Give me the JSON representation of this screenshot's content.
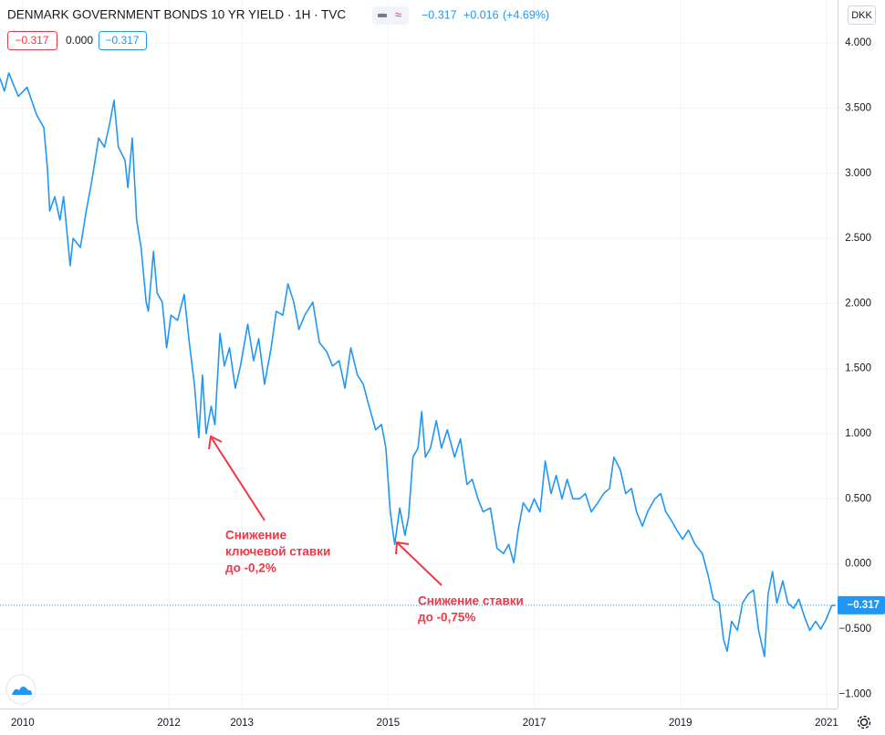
{
  "chart_data": {
    "type": "line",
    "title": "DENMARK GOVERNMENT BONDS 10 YR YIELD · 1H · TVC",
    "quote": {
      "last": "−0.317",
      "change": "+0.016",
      "change_pct": "(+4.69%)"
    },
    "ohlc_boxes": [
      "−0.317",
      "0.000",
      "−0.317"
    ],
    "currency": "DKK",
    "last_value": {
      "value": -0.317,
      "label": "−0.317"
    },
    "annotations": [
      {
        "lines": [
          "Снижение",
          "ключевой ставки",
          "до -0,2%"
        ]
      },
      {
        "lines": [
          "Снижение ставки",
          "до -0,75%"
        ]
      }
    ],
    "grid": true,
    "xlim": [
      2009.69,
      2021.15
    ],
    "xticks": [
      2010,
      2012,
      2013,
      2015,
      2017,
      2019,
      2021
    ],
    "ylim": [
      -1.11,
      4.33
    ],
    "yticks": [
      {
        "value": -1,
        "label": "−1.000"
      },
      {
        "value": -0.5,
        "label": "−0.500"
      },
      {
        "value": 0,
        "label": "0.000"
      },
      {
        "value": 0.5,
        "label": "0.500"
      },
      {
        "value": 1,
        "label": "1.000"
      },
      {
        "value": 1.5,
        "label": "1.500"
      },
      {
        "value": 2,
        "label": "2.000"
      },
      {
        "value": 2.5,
        "label": "2.500"
      },
      {
        "value": 3,
        "label": "3.000"
      },
      {
        "value": 3.5,
        "label": "3.500"
      },
      {
        "value": 4,
        "label": "4.000"
      }
    ],
    "x": [
      2009.69,
      2009.75,
      2009.81,
      2009.94,
      2010.06,
      2010.19,
      2010.29,
      2010.34,
      2010.37,
      2010.44,
      2010.51,
      2010.56,
      2010.65,
      2010.69,
      2010.79,
      2010.87,
      2010.94,
      2011.04,
      2011.12,
      2011.19,
      2011.25,
      2011.31,
      2011.4,
      2011.44,
      2011.5,
      2011.56,
      2011.62,
      2011.69,
      2011.72,
      2011.79,
      2011.84,
      2011.91,
      2011.97,
      2012.03,
      2012.12,
      2012.21,
      2012.28,
      2012.35,
      2012.41,
      2012.46,
      2012.51,
      2012.58,
      2012.63,
      2012.7,
      2012.76,
      2012.83,
      2012.91,
      2012.98,
      2013.08,
      2013.16,
      2013.23,
      2013.31,
      2013.4,
      2013.47,
      2013.56,
      2013.63,
      2013.71,
      2013.78,
      2013.86,
      2013.97,
      2014.06,
      2014.16,
      2014.24,
      2014.33,
      2014.41,
      2014.49,
      2014.58,
      2014.66,
      2014.74,
      2014.83,
      2014.91,
      2014.97,
      2015.03,
      2015.09,
      2015.16,
      2015.23,
      2015.28,
      2015.34,
      2015.41,
      2015.46,
      2015.51,
      2015.58,
      2015.66,
      2015.73,
      2015.81,
      2015.91,
      2015.99,
      2016.08,
      2016.15,
      2016.23,
      2016.3,
      2016.4,
      2016.49,
      2016.58,
      2016.65,
      2016.72,
      2016.78,
      2016.85,
      2016.93,
      2017.0,
      2017.08,
      2017.15,
      2017.23,
      2017.3,
      2017.38,
      2017.45,
      2017.53,
      2017.62,
      2017.7,
      2017.78,
      2017.87,
      2017.95,
      2018.03,
      2018.09,
      2018.18,
      2018.25,
      2018.33,
      2018.4,
      2018.48,
      2018.55,
      2018.65,
      2018.73,
      2018.8,
      2018.88,
      2018.95,
      2019.03,
      2019.11,
      2019.2,
      2019.3,
      2019.38,
      2019.45,
      2019.53,
      2019.59,
      2019.64,
      2019.7,
      2019.78,
      2019.85,
      2019.93,
      2020.0,
      2020.07,
      2020.15,
      2020.2,
      2020.26,
      2020.32,
      2020.4,
      2020.47,
      2020.55,
      2020.62,
      2020.7,
      2020.77,
      2020.85,
      2020.92,
      2020.99,
      2021.07,
      2021.12
    ],
    "series": [
      {
        "name": "DENMARK GOVERNMENT BONDS 10 YR YIELD",
        "color": "#2196f3",
        "values": [
          3.73,
          3.63,
          3.77,
          3.59,
          3.66,
          3.45,
          3.35,
          3.03,
          2.71,
          2.82,
          2.64,
          2.82,
          2.29,
          2.5,
          2.43,
          2.71,
          2.92,
          3.27,
          3.2,
          3.38,
          3.56,
          3.2,
          3.1,
          2.89,
          3.27,
          2.64,
          2.43,
          2.01,
          1.94,
          2.4,
          2.08,
          2.01,
          1.66,
          1.91,
          1.87,
          2.07,
          1.7,
          1.38,
          0.97,
          1.45,
          1.0,
          1.21,
          1.07,
          1.77,
          1.52,
          1.66,
          1.35,
          1.52,
          1.84,
          1.56,
          1.73,
          1.38,
          1.66,
          1.94,
          1.91,
          2.15,
          2.01,
          1.8,
          1.91,
          2.01,
          1.7,
          1.63,
          1.52,
          1.56,
          1.35,
          1.66,
          1.45,
          1.38,
          1.21,
          1.03,
          1.07,
          0.89,
          0.4,
          0.15,
          0.43,
          0.22,
          0.36,
          0.82,
          0.89,
          1.17,
          0.82,
          0.89,
          1.1,
          0.89,
          1.03,
          0.82,
          0.96,
          0.61,
          0.65,
          0.5,
          0.4,
          0.43,
          0.12,
          0.08,
          0.15,
          0.01,
          0.26,
          0.47,
          0.4,
          0.5,
          0.4,
          0.79,
          0.54,
          0.68,
          0.5,
          0.65,
          0.5,
          0.5,
          0.54,
          0.4,
          0.47,
          0.54,
          0.58,
          0.82,
          0.72,
          0.54,
          0.58,
          0.4,
          0.29,
          0.4,
          0.5,
          0.54,
          0.4,
          0.33,
          0.26,
          0.19,
          0.26,
          0.15,
          0.08,
          -0.09,
          -0.27,
          -0.3,
          -0.58,
          -0.67,
          -0.44,
          -0.51,
          -0.3,
          -0.23,
          -0.2,
          -0.51,
          -0.71,
          -0.23,
          -0.06,
          -0.3,
          -0.13,
          -0.3,
          -0.34,
          -0.27,
          -0.41,
          -0.51,
          -0.44,
          -0.5,
          -0.43,
          -0.32,
          -0.317
        ]
      }
    ]
  }
}
